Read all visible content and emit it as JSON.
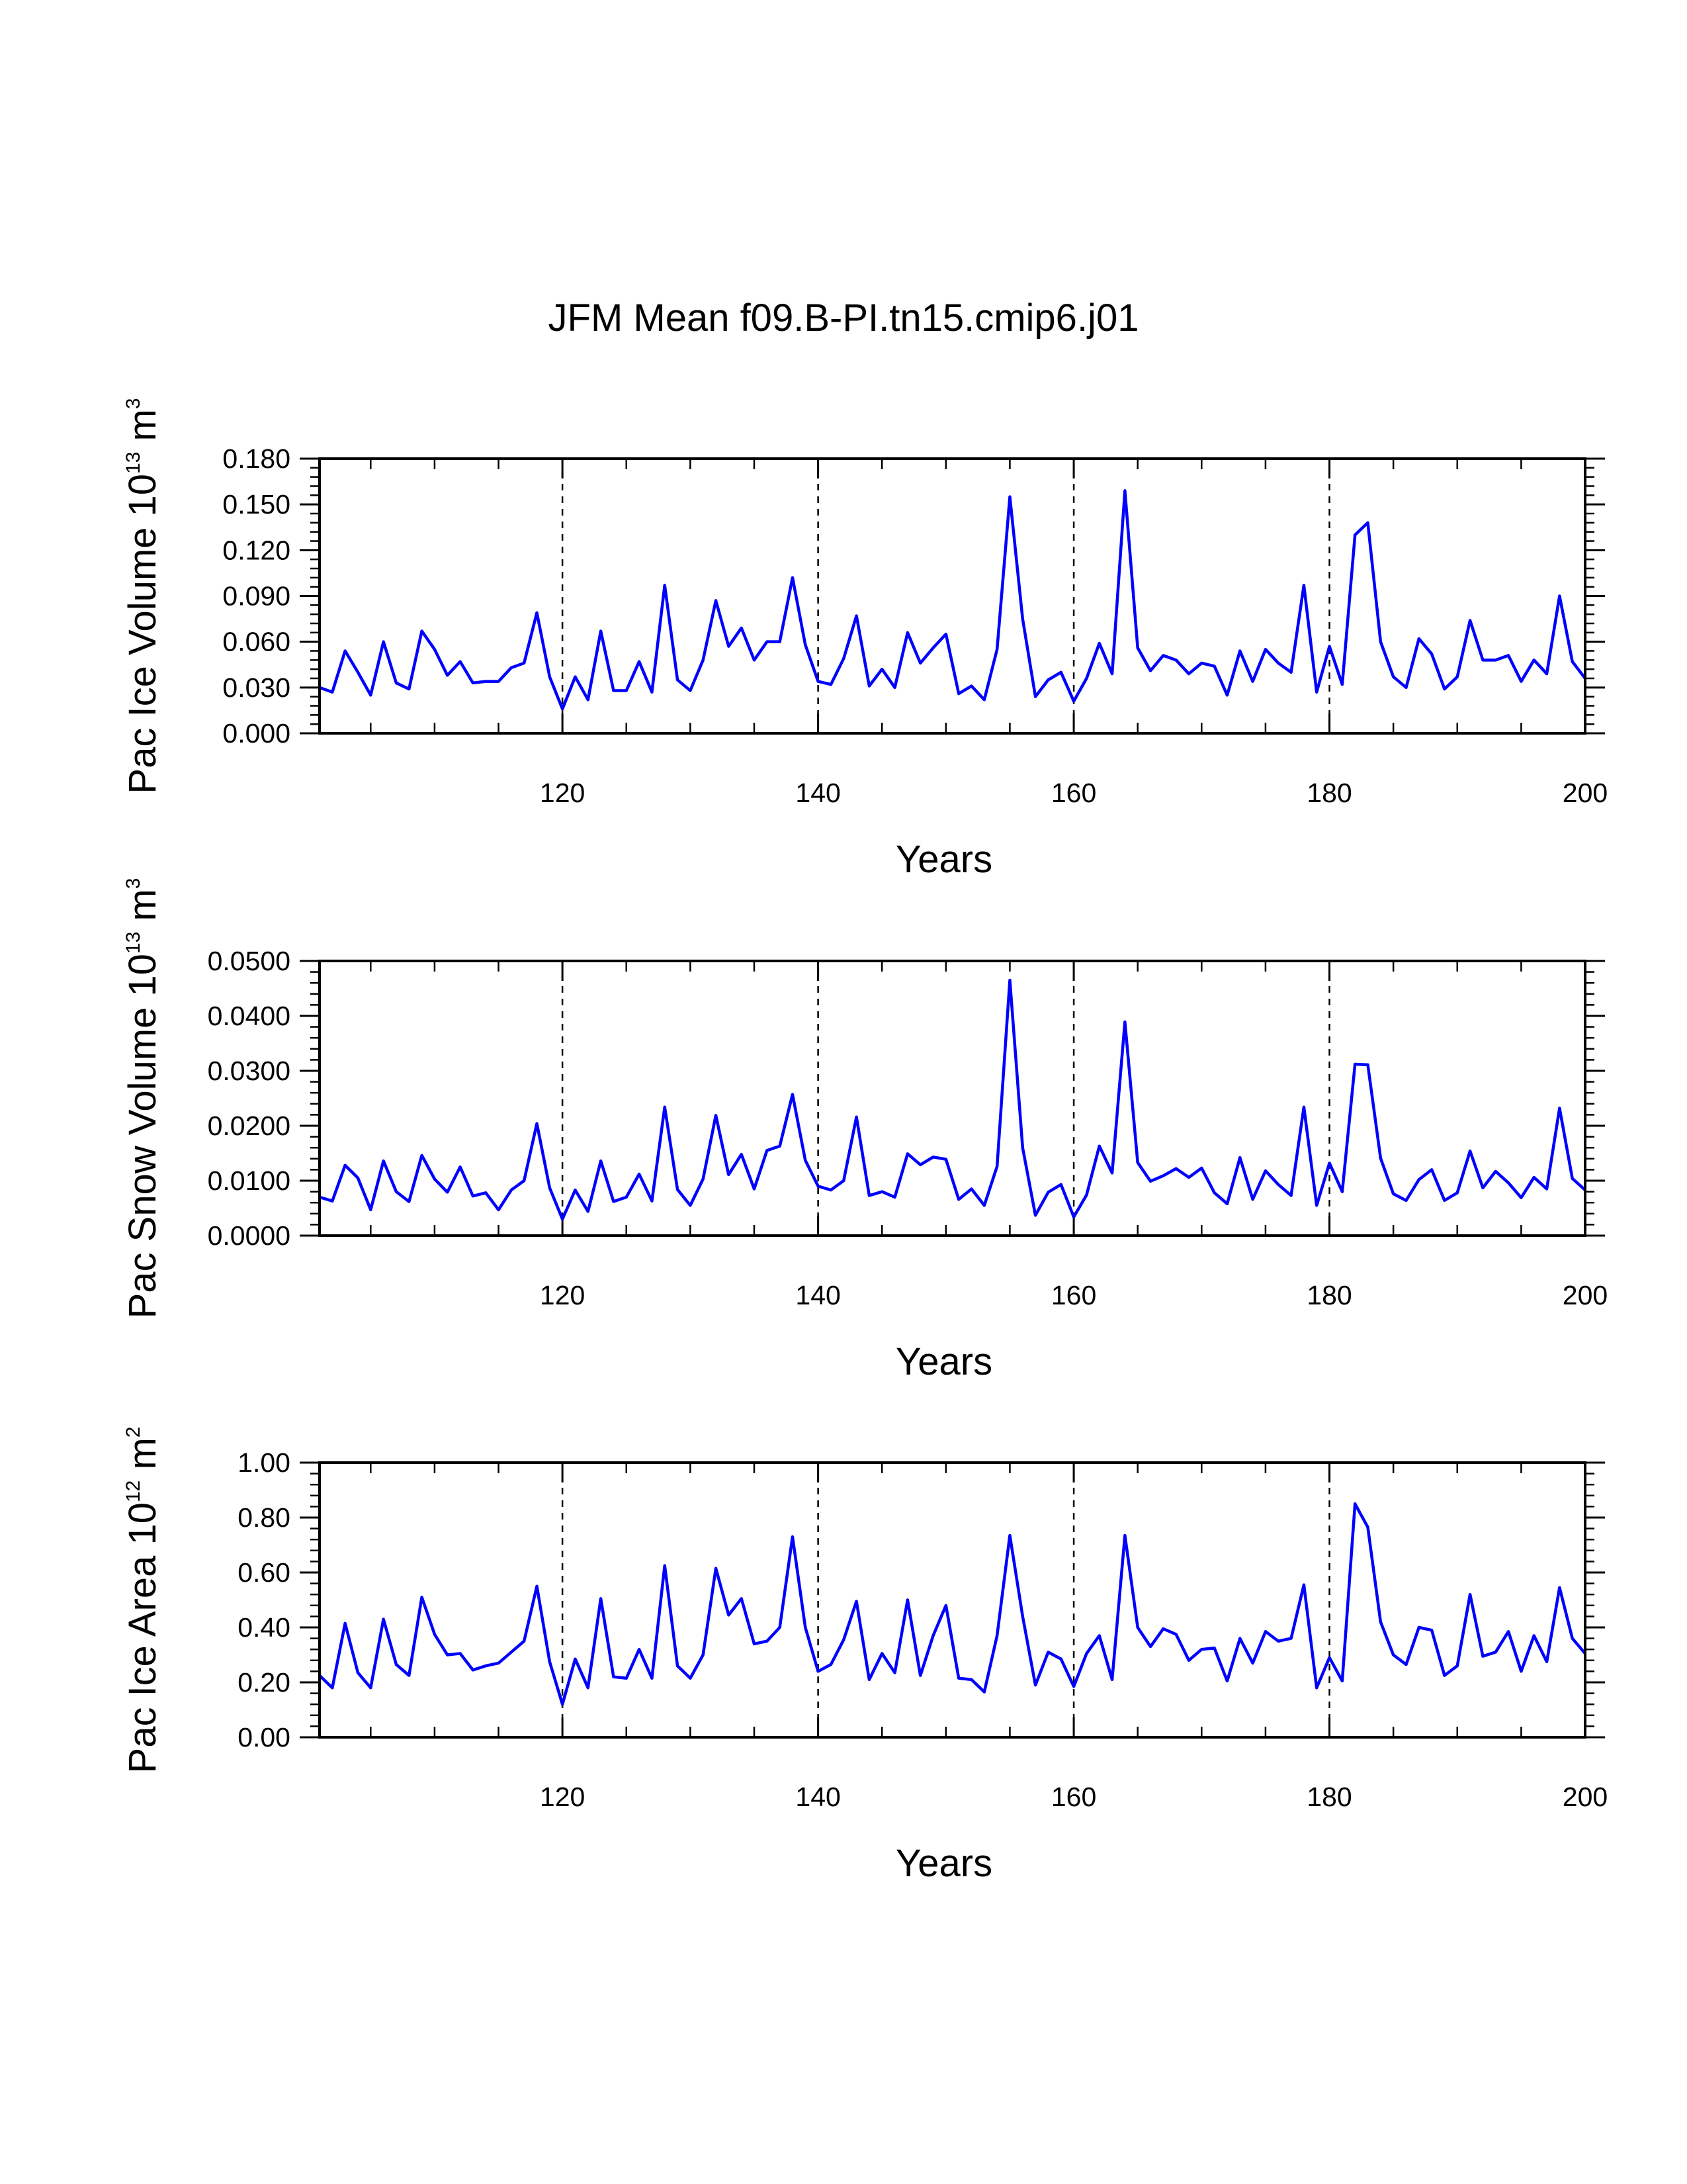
{
  "figure_title": "JFM Mean f09.B-PI.tn15.cmip6.j01",
  "colors": {
    "series": "#0000ff",
    "axes": "#000000",
    "background": "#ffffff"
  },
  "chart_data": [
    {
      "type": "line",
      "title": "JFM Mean f09.B-PI.tn15.cmip6.j01",
      "xlabel": "Years",
      "ylabel": {
        "prefix": "Pac Ice Volume 10",
        "exponent": "13",
        "unit_base": " m",
        "unit_exponent": "3"
      },
      "xlim": [
        101,
        200
      ],
      "ylim": [
        0,
        0.18
      ],
      "x_ticks": [
        120,
        140,
        160,
        180,
        200
      ],
      "x_tick_labels": [
        "120",
        "140",
        "160",
        "180",
        "200"
      ],
      "y_ticks": [
        0,
        0.03,
        0.06,
        0.09,
        0.12,
        0.15,
        0.18
      ],
      "y_tick_labels": [
        "0.000",
        "0.030",
        "0.060",
        "0.090",
        "0.120",
        "0.150",
        "0.180"
      ],
      "reference_lines_x": [
        120,
        140,
        160,
        180
      ],
      "x_start": 101,
      "series": [
        {
          "name": "Pac Ice Volume",
          "color": "#0000ff",
          "values": [
            0.03,
            0.027,
            0.054,
            0.04,
            0.025,
            0.06,
            0.033,
            0.029,
            0.067,
            0.055,
            0.038,
            0.047,
            0.033,
            0.034,
            0.034,
            0.043,
            0.046,
            0.079,
            0.037,
            0.016,
            0.037,
            0.022,
            0.067,
            0.028,
            0.028,
            0.047,
            0.027,
            0.097,
            0.035,
            0.028,
            0.048,
            0.087,
            0.057,
            0.069,
            0.048,
            0.06,
            0.06,
            0.102,
            0.058,
            0.034,
            0.032,
            0.049,
            0.077,
            0.031,
            0.042,
            0.03,
            0.066,
            0.046,
            0.056,
            0.065,
            0.026,
            0.031,
            0.022,
            0.055,
            0.155,
            0.075,
            0.024,
            0.035,
            0.04,
            0.021,
            0.036,
            0.059,
            0.039,
            0.159,
            0.056,
            0.041,
            0.051,
            0.048,
            0.039,
            0.046,
            0.044,
            0.025,
            0.054,
            0.034,
            0.055,
            0.046,
            0.04,
            0.097,
            0.027,
            0.057,
            0.032,
            0.13,
            0.138,
            0.06,
            0.037,
            0.03,
            0.062,
            0.052,
            0.029,
            0.037,
            0.074,
            0.048,
            0.048,
            0.051,
            0.034,
            0.048,
            0.039,
            0.09,
            0.047,
            0.036
          ]
        }
      ]
    },
    {
      "type": "line",
      "title": "",
      "xlabel": "Years",
      "ylabel": {
        "prefix": "Pac Snow Volume 10",
        "exponent": "13",
        "unit_base": " m",
        "unit_exponent": "3"
      },
      "xlim": [
        101,
        200
      ],
      "ylim": [
        0,
        0.05
      ],
      "x_ticks": [
        120,
        140,
        160,
        180,
        200
      ],
      "x_tick_labels": [
        "120",
        "140",
        "160",
        "180",
        "200"
      ],
      "y_ticks": [
        0,
        0.01,
        0.02,
        0.03,
        0.04,
        0.05
      ],
      "y_tick_labels": [
        "0.0000",
        "0.0100",
        "0.0200",
        "0.0300",
        "0.0400",
        "0.0500"
      ],
      "reference_lines_x": [
        120,
        140,
        160,
        180
      ],
      "x_start": 101,
      "series": [
        {
          "name": "Pac Snow Volume",
          "color": "#0000ff",
          "values": [
            0.007,
            0.0063,
            0.0128,
            0.0105,
            0.0047,
            0.0136,
            0.008,
            0.0062,
            0.0146,
            0.0103,
            0.0079,
            0.0125,
            0.0072,
            0.0078,
            0.0047,
            0.0083,
            0.01,
            0.0204,
            0.0087,
            0.003,
            0.0083,
            0.0044,
            0.0136,
            0.0062,
            0.007,
            0.0112,
            0.0063,
            0.0234,
            0.0084,
            0.0055,
            0.0103,
            0.0219,
            0.0111,
            0.0148,
            0.0085,
            0.0155,
            0.0163,
            0.0257,
            0.0137,
            0.009,
            0.0083,
            0.01,
            0.0216,
            0.0073,
            0.008,
            0.007,
            0.0149,
            0.0129,
            0.0143,
            0.0139,
            0.0066,
            0.0085,
            0.0055,
            0.0126,
            0.0465,
            0.016,
            0.0037,
            0.0079,
            0.0093,
            0.0034,
            0.0074,
            0.0163,
            0.0114,
            0.0389,
            0.0133,
            0.0099,
            0.0109,
            0.0122,
            0.0106,
            0.0123,
            0.0078,
            0.0058,
            0.0142,
            0.0066,
            0.0118,
            0.0093,
            0.0073,
            0.0234,
            0.0055,
            0.0132,
            0.008,
            0.0312,
            0.0311,
            0.0141,
            0.0076,
            0.0064,
            0.0102,
            0.012,
            0.0064,
            0.0078,
            0.0154,
            0.0087,
            0.0117,
            0.0096,
            0.0069,
            0.0106,
            0.0085,
            0.0232,
            0.0104,
            0.0083
          ]
        }
      ]
    },
    {
      "type": "line",
      "title": "",
      "xlabel": "Years",
      "ylabel": {
        "prefix": "Pac Ice Area 10",
        "exponent": "12",
        "unit_base": " m",
        "unit_exponent": "2"
      },
      "xlim": [
        101,
        200
      ],
      "ylim": [
        0,
        1.0
      ],
      "x_ticks": [
        120,
        140,
        160,
        180,
        200
      ],
      "x_tick_labels": [
        "120",
        "140",
        "160",
        "180",
        "200"
      ],
      "y_ticks": [
        0,
        0.2,
        0.4,
        0.6,
        0.8,
        1.0
      ],
      "y_tick_labels": [
        "0.00",
        "0.20",
        "0.40",
        "0.60",
        "0.80",
        "1.00"
      ],
      "reference_lines_x": [
        120,
        140,
        160,
        180
      ],
      "x_start": 101,
      "series": [
        {
          "name": "Pac Ice Area",
          "color": "#0000ff",
          "values": [
            0.225,
            0.18,
            0.415,
            0.235,
            0.18,
            0.43,
            0.265,
            0.225,
            0.51,
            0.375,
            0.3,
            0.305,
            0.245,
            0.26,
            0.27,
            0.31,
            0.35,
            0.55,
            0.275,
            0.12,
            0.285,
            0.18,
            0.505,
            0.22,
            0.215,
            0.32,
            0.215,
            0.625,
            0.26,
            0.215,
            0.3,
            0.615,
            0.445,
            0.505,
            0.34,
            0.35,
            0.4,
            0.73,
            0.4,
            0.24,
            0.265,
            0.355,
            0.495,
            0.21,
            0.305,
            0.235,
            0.5,
            0.225,
            0.37,
            0.48,
            0.215,
            0.21,
            0.165,
            0.37,
            0.735,
            0.44,
            0.19,
            0.31,
            0.285,
            0.185,
            0.305,
            0.37,
            0.21,
            0.735,
            0.4,
            0.33,
            0.395,
            0.375,
            0.28,
            0.32,
            0.325,
            0.205,
            0.36,
            0.27,
            0.385,
            0.35,
            0.36,
            0.555,
            0.18,
            0.29,
            0.205,
            0.85,
            0.765,
            0.42,
            0.3,
            0.265,
            0.4,
            0.39,
            0.225,
            0.26,
            0.52,
            0.295,
            0.31,
            0.385,
            0.24,
            0.37,
            0.275,
            0.545,
            0.36,
            0.305
          ]
        }
      ]
    }
  ]
}
